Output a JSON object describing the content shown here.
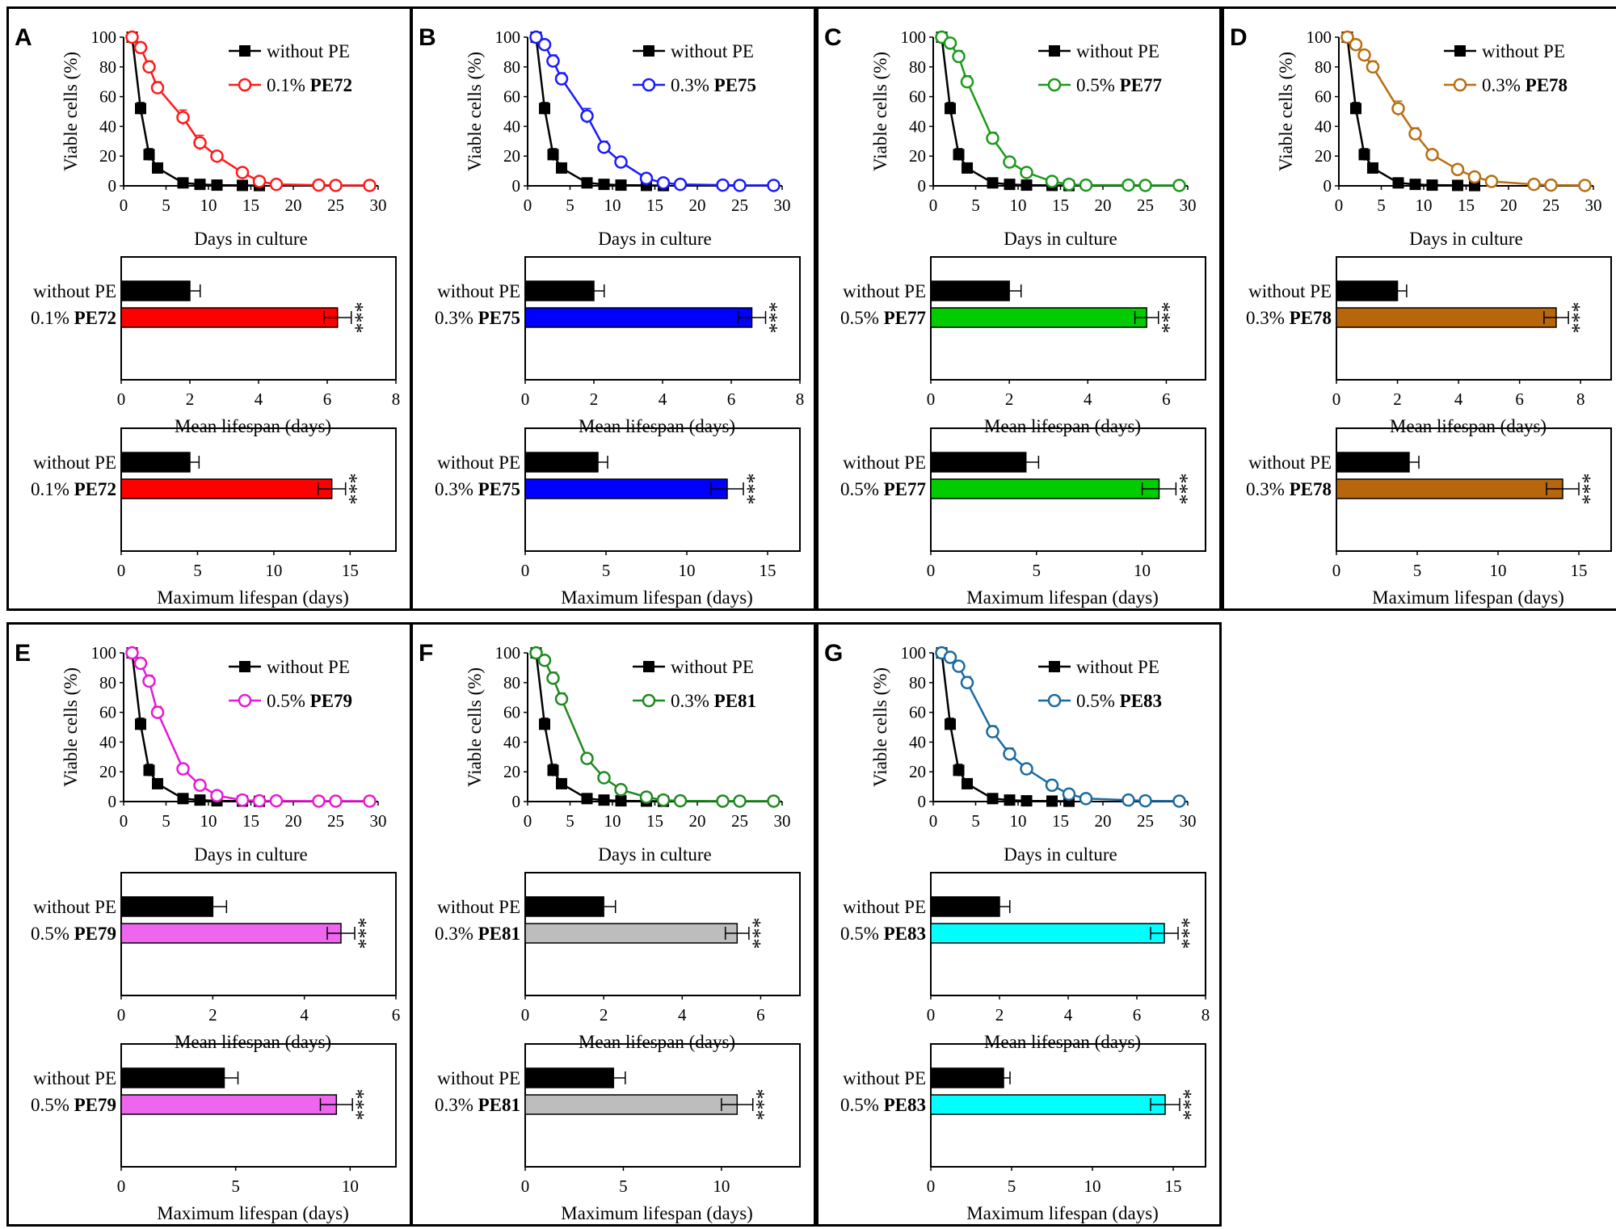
{
  "labels": {
    "ylabel_viability": "Viable cells (%)",
    "xlabel_days": "Days in culture",
    "xlabel_mean": "Mean lifespan (days)",
    "xlabel_max": "Maximum lifespan (days)",
    "control_label": "without PE",
    "significance": "***"
  },
  "chart_data": [
    {
      "panel": "A",
      "type": "line",
      "series_color": "#ff1a1a",
      "bar_color": "#ff0000",
      "concentration": "0.1%",
      "extract": "PE72",
      "xlim": [
        0,
        30
      ],
      "ylim": [
        0,
        100
      ],
      "xticks": [
        0,
        5,
        10,
        15,
        20,
        25,
        30
      ],
      "yticks": [
        0,
        20,
        40,
        60,
        80,
        100
      ],
      "series": [
        {
          "name": "without PE",
          "x": [
            1,
            2,
            3,
            4,
            7,
            9,
            11,
            14,
            16
          ],
          "y": [
            100,
            52,
            21,
            12,
            2,
            1,
            0.5,
            0.3,
            0.2
          ],
          "err": [
            0,
            4,
            4,
            3,
            1,
            0.5,
            0,
            0,
            0
          ]
        },
        {
          "name": "0.1% PE72",
          "x": [
            1,
            2,
            3,
            4,
            7,
            9,
            11,
            14,
            16,
            18,
            23,
            25,
            29
          ],
          "y": [
            100,
            93,
            80,
            66,
            46,
            29,
            20,
            9,
            3,
            1,
            0.5,
            0.3,
            0.3
          ],
          "err": [
            0,
            3,
            4,
            4,
            5,
            5,
            3,
            2,
            1,
            1,
            0,
            0,
            0
          ]
        }
      ],
      "mean_lifespan": {
        "xlim": [
          0,
          8
        ],
        "xticks": [
          0,
          2,
          4,
          6,
          8
        ],
        "values": [
          2.0,
          6.3
        ],
        "err": [
          0.3,
          0.4
        ]
      },
      "max_lifespan": {
        "xlim": [
          0,
          18
        ],
        "xticks": [
          0,
          5,
          10,
          15
        ],
        "values": [
          4.5,
          13.8
        ],
        "err": [
          0.6,
          0.9
        ]
      }
    },
    {
      "panel": "B",
      "type": "line",
      "series_color": "#1a1aff",
      "bar_color": "#0000ff",
      "concentration": "0.3%",
      "extract": "PE75",
      "xlim": [
        0,
        30
      ],
      "ylim": [
        0,
        100
      ],
      "xticks": [
        0,
        5,
        10,
        15,
        20,
        25,
        30
      ],
      "yticks": [
        0,
        20,
        40,
        60,
        80,
        100
      ],
      "series": [
        {
          "name": "without PE",
          "x": [
            1,
            2,
            3,
            4,
            7,
            9,
            11,
            14,
            16
          ],
          "y": [
            100,
            52,
            21,
            12,
            2,
            1,
            0.5,
            0.3,
            0.2
          ],
          "err": [
            0,
            4,
            4,
            3,
            1,
            0.5,
            0,
            0,
            0
          ]
        },
        {
          "name": "0.3% PE75",
          "x": [
            1,
            2,
            3,
            4,
            7,
            9,
            11,
            14,
            16,
            18,
            23,
            25,
            29
          ],
          "y": [
            100,
            95,
            84,
            72,
            47,
            26,
            16,
            5,
            2,
            1,
            0.5,
            0.3,
            0.3
          ],
          "err": [
            0,
            3,
            4,
            4,
            5,
            4,
            3,
            2,
            1,
            1,
            0,
            0,
            0
          ]
        }
      ],
      "mean_lifespan": {
        "xlim": [
          0,
          8
        ],
        "xticks": [
          0,
          2,
          4,
          6,
          8
        ],
        "values": [
          2.0,
          6.6
        ],
        "err": [
          0.3,
          0.4
        ]
      },
      "max_lifespan": {
        "xlim": [
          0,
          17
        ],
        "xticks": [
          0,
          5,
          10,
          15
        ],
        "values": [
          4.5,
          12.5
        ],
        "err": [
          0.6,
          1.0
        ]
      }
    },
    {
      "panel": "C",
      "type": "line",
      "series_color": "#1a9a1a",
      "bar_color": "#00cc00",
      "concentration": "0.5%",
      "extract": "PE77",
      "xlim": [
        0,
        30
      ],
      "ylim": [
        0,
        100
      ],
      "xticks": [
        0,
        5,
        10,
        15,
        20,
        25,
        30
      ],
      "yticks": [
        0,
        20,
        40,
        60,
        80,
        100
      ],
      "series": [
        {
          "name": "without PE",
          "x": [
            1,
            2,
            3,
            4,
            7,
            9,
            11,
            14,
            16
          ],
          "y": [
            100,
            52,
            21,
            12,
            2,
            1,
            0.5,
            0.3,
            0.2
          ],
          "err": [
            0,
            4,
            4,
            3,
            1,
            0.5,
            0,
            0,
            0
          ]
        },
        {
          "name": "0.5% PE77",
          "x": [
            1,
            2,
            3,
            4,
            7,
            9,
            11,
            14,
            16,
            18,
            23,
            25,
            29
          ],
          "y": [
            100,
            96,
            87,
            70,
            32,
            16,
            9,
            3,
            1,
            0.5,
            0.5,
            0.3,
            0.3
          ],
          "err": [
            0,
            3,
            4,
            4,
            4,
            3,
            2,
            1,
            1,
            0,
            0,
            0,
            0
          ]
        }
      ],
      "mean_lifespan": {
        "xlim": [
          0,
          7
        ],
        "xticks": [
          0,
          2,
          4,
          6
        ],
        "values": [
          2.0,
          5.5
        ],
        "err": [
          0.3,
          0.3
        ]
      },
      "max_lifespan": {
        "xlim": [
          0,
          13
        ],
        "xticks": [
          0,
          5,
          10
        ],
        "values": [
          4.5,
          10.8
        ],
        "err": [
          0.6,
          0.8
        ]
      }
    },
    {
      "panel": "D",
      "type": "line",
      "series_color": "#b86e10",
      "bar_color": "#b8660b",
      "concentration": "0.3%",
      "extract": "PE78",
      "xlim": [
        0,
        30
      ],
      "ylim": [
        0,
        100
      ],
      "xticks": [
        0,
        5,
        10,
        15,
        20,
        25,
        30
      ],
      "yticks": [
        0,
        20,
        40,
        60,
        80,
        100
      ],
      "series": [
        {
          "name": "without PE",
          "x": [
            1,
            2,
            3,
            4,
            7,
            9,
            11,
            14,
            16
          ],
          "y": [
            100,
            52,
            21,
            12,
            2,
            1,
            0.5,
            0.3,
            0.2
          ],
          "err": [
            0,
            4,
            4,
            3,
            1,
            0.5,
            0,
            0,
            0
          ]
        },
        {
          "name": "0.3% PE78",
          "x": [
            1,
            2,
            3,
            4,
            7,
            9,
            11,
            14,
            16,
            18,
            23,
            25,
            29
          ],
          "y": [
            100,
            95,
            88,
            80,
            52,
            35,
            21,
            11,
            6,
            3,
            1,
            0.5,
            0.3
          ],
          "err": [
            0,
            3,
            3,
            4,
            5,
            4,
            2,
            2,
            1,
            1,
            0,
            0,
            0
          ]
        }
      ],
      "mean_lifespan": {
        "xlim": [
          0,
          9
        ],
        "xticks": [
          0,
          2,
          4,
          6,
          8
        ],
        "values": [
          2.0,
          7.2
        ],
        "err": [
          0.3,
          0.4
        ]
      },
      "max_lifespan": {
        "xlim": [
          0,
          17
        ],
        "xticks": [
          0,
          5,
          10,
          15
        ],
        "values": [
          4.5,
          14.0
        ],
        "err": [
          0.6,
          1.0
        ]
      }
    },
    {
      "panel": "E",
      "type": "line",
      "series_color": "#e61ad2",
      "bar_color": "#ee66ee",
      "concentration": "0.5%",
      "extract": "PE79",
      "xlim": [
        0,
        30
      ],
      "ylim": [
        0,
        100
      ],
      "xticks": [
        0,
        5,
        10,
        15,
        20,
        25,
        30
      ],
      "yticks": [
        0,
        20,
        40,
        60,
        80,
        100
      ],
      "series": [
        {
          "name": "without PE",
          "x": [
            1,
            2,
            3,
            4,
            7,
            9,
            11,
            14,
            16
          ],
          "y": [
            100,
            52,
            21,
            12,
            2,
            1,
            0.5,
            0.3,
            0.2
          ],
          "err": [
            0,
            4,
            4,
            3,
            1,
            0.5,
            0,
            0,
            0
          ]
        },
        {
          "name": "0.5% PE79",
          "x": [
            1,
            2,
            3,
            4,
            7,
            9,
            11,
            14,
            16,
            18,
            23,
            25,
            29
          ],
          "y": [
            100,
            93,
            81,
            60,
            22,
            11,
            4,
            1,
            0.5,
            0.5,
            0.3,
            0.3,
            0.3
          ],
          "err": [
            0,
            3,
            4,
            4,
            3,
            2,
            1,
            1,
            0,
            0,
            0,
            0,
            0
          ]
        }
      ],
      "mean_lifespan": {
        "xlim": [
          0,
          6
        ],
        "xticks": [
          0,
          2,
          4,
          6
        ],
        "values": [
          2.0,
          4.8
        ],
        "err": [
          0.3,
          0.3
        ]
      },
      "max_lifespan": {
        "xlim": [
          0,
          12
        ],
        "xticks": [
          0,
          5,
          10
        ],
        "values": [
          4.5,
          9.4
        ],
        "err": [
          0.6,
          0.7
        ]
      }
    },
    {
      "panel": "F",
      "type": "line",
      "series_color": "#1f8a1f",
      "bar_color": "#bdbdbd",
      "concentration": "0.3%",
      "extract": "PE81",
      "xlim": [
        0,
        30
      ],
      "ylim": [
        0,
        100
      ],
      "xticks": [
        0,
        5,
        10,
        15,
        20,
        25,
        30
      ],
      "yticks": [
        0,
        20,
        40,
        60,
        80,
        100
      ],
      "series": [
        {
          "name": "without PE",
          "x": [
            1,
            2,
            3,
            4,
            7,
            9,
            11,
            14,
            16
          ],
          "y": [
            100,
            52,
            21,
            12,
            2,
            1,
            0.5,
            0.3,
            0.2
          ],
          "err": [
            0,
            4,
            4,
            3,
            1,
            0.5,
            0,
            0,
            0
          ]
        },
        {
          "name": "0.3% PE81",
          "x": [
            1,
            2,
            3,
            4,
            7,
            9,
            11,
            14,
            16,
            18,
            23,
            25,
            29
          ],
          "y": [
            100,
            95,
            83,
            69,
            29,
            16,
            8,
            3,
            1,
            0.5,
            0.3,
            0.3,
            0.3
          ],
          "err": [
            0,
            3,
            4,
            4,
            3,
            3,
            2,
            1,
            1,
            0,
            0,
            0,
            0
          ]
        }
      ],
      "mean_lifespan": {
        "xlim": [
          0,
          7
        ],
        "xticks": [
          0,
          2,
          4,
          6
        ],
        "values": [
          2.0,
          5.4
        ],
        "err": [
          0.3,
          0.3
        ]
      },
      "max_lifespan": {
        "xlim": [
          0,
          14
        ],
        "xticks": [
          0,
          5,
          10
        ],
        "values": [
          4.5,
          10.8
        ],
        "err": [
          0.6,
          0.8
        ]
      }
    },
    {
      "panel": "G",
      "type": "line",
      "series_color": "#1a6aa0",
      "bar_color": "#00ffff",
      "concentration": "0.5%",
      "extract": "PE83",
      "xlim": [
        0,
        30
      ],
      "ylim": [
        0,
        100
      ],
      "xticks": [
        0,
        5,
        10,
        15,
        20,
        25,
        30
      ],
      "yticks": [
        0,
        20,
        40,
        60,
        80,
        100
      ],
      "series": [
        {
          "name": "without PE",
          "x": [
            1,
            2,
            3,
            4,
            7,
            9,
            11,
            14,
            16
          ],
          "y": [
            100,
            52,
            21,
            12,
            2,
            1,
            0.5,
            0.3,
            0.2
          ],
          "err": [
            0,
            4,
            4,
            3,
            1,
            0.5,
            0,
            0,
            0
          ]
        },
        {
          "name": "0.5% PE83",
          "x": [
            1,
            2,
            3,
            4,
            7,
            9,
            11,
            14,
            16,
            18,
            23,
            25,
            29
          ],
          "y": [
            100,
            97,
            91,
            80,
            47,
            32,
            22,
            11,
            5,
            2,
            1,
            0.5,
            0.3
          ],
          "err": [
            0,
            3,
            3,
            4,
            4,
            4,
            3,
            2,
            1,
            1,
            0,
            0,
            0
          ]
        }
      ],
      "mean_lifespan": {
        "xlim": [
          0,
          8
        ],
        "xticks": [
          0,
          2,
          4,
          6,
          8
        ],
        "values": [
          2.0,
          6.8
        ],
        "err": [
          0.3,
          0.4
        ]
      },
      "max_lifespan": {
        "xlim": [
          0,
          17
        ],
        "xticks": [
          0,
          5,
          10,
          15
        ],
        "values": [
          4.5,
          14.5
        ],
        "err": [
          0.4,
          0.9
        ]
      }
    }
  ]
}
